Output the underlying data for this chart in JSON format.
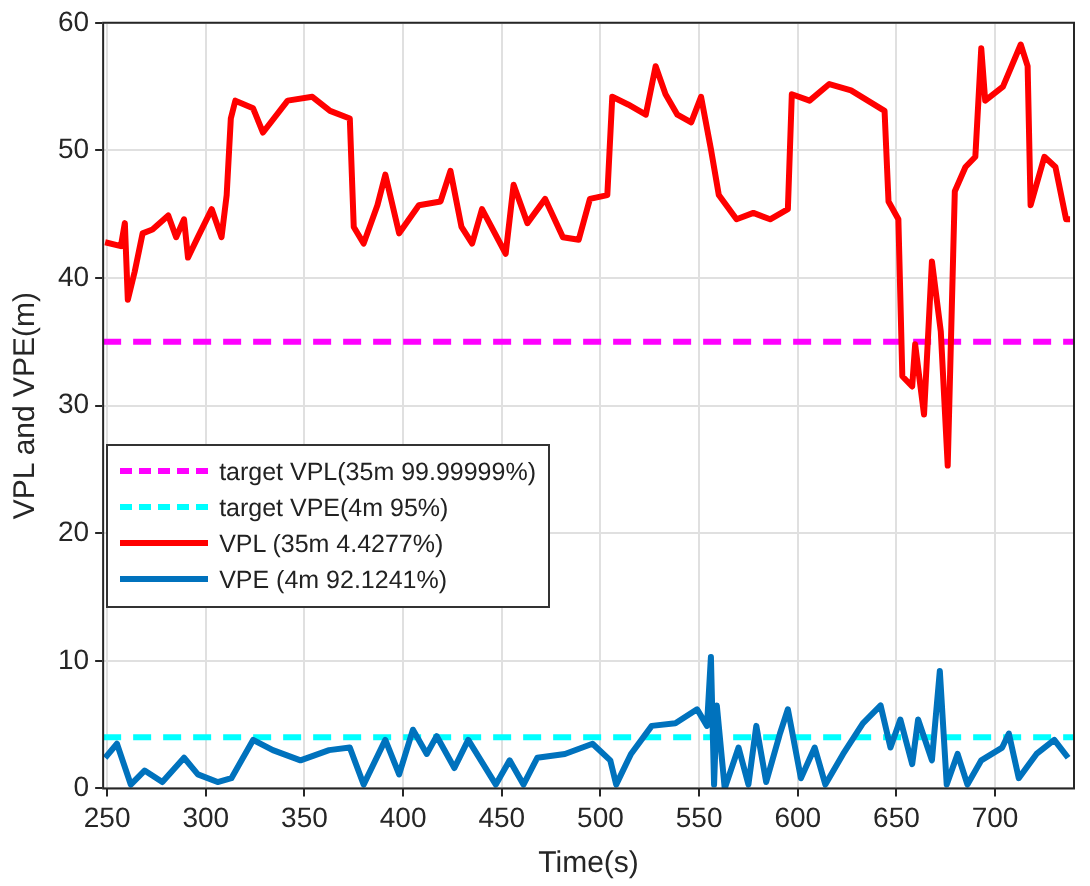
{
  "chart_data": {
    "type": "line",
    "xlabel": "Time(s)",
    "ylabel": "VPL and VPE(m)",
    "xlim": [
      248,
      740
    ],
    "xticks": [
      250,
      300,
      350,
      400,
      450,
      500,
      550,
      600,
      650,
      700
    ],
    "ylim": [
      0,
      60
    ],
    "yticks": [
      0,
      10,
      20,
      30,
      40,
      50,
      60
    ],
    "grid": true,
    "legend": "left",
    "marker": "none",
    "line_style": "solid",
    "ref_lines": [
      {
        "axis": "y",
        "value": 35,
        "label": "target VPL(35m 99.99999%)",
        "color": "#ff00ff",
        "line_style": "dashed"
      },
      {
        "axis": "y",
        "value": 4,
        "label": "target VPE(4m 95%)",
        "color": "#00ffff",
        "line_style": "dashed"
      }
    ],
    "series": [
      {
        "name": "VPL (35m 4.4277%)",
        "color": "#ff0000",
        "x": [
          249,
          257,
          259,
          260.5,
          264,
          268,
          273,
          281,
          285,
          289,
          291,
          296,
          303,
          308,
          310.6,
          312.7,
          315,
          324,
          329,
          341.5,
          354,
          363,
          373,
          375,
          380,
          387,
          391,
          398,
          408,
          419,
          424,
          429.6,
          435,
          440,
          452,
          456,
          463,
          472,
          481,
          489,
          494.7,
          503.5,
          506,
          514,
          523,
          528,
          533,
          539,
          546,
          551,
          556,
          560,
          569,
          577.5,
          586,
          595,
          597,
          606,
          616,
          627,
          644,
          646,
          651,
          653,
          658,
          659.5,
          664,
          668,
          672.5,
          676,
          679.6,
          685,
          690,
          693,
          695,
          704,
          713,
          716.5,
          718,
          725,
          730.6,
          736,
          738
        ],
        "values": [
          42.8,
          42.5,
          44.3,
          38.3,
          40.5,
          43.5,
          43.8,
          44.9,
          43.2,
          44.6,
          41.6,
          43.2,
          45.4,
          43.2,
          46.5,
          52.5,
          53.9,
          53.3,
          51.4,
          53.9,
          54.2,
          53.1,
          52.5,
          44.0,
          42.7,
          45.7,
          48.1,
          43.5,
          45.7,
          46.0,
          48.4,
          44.0,
          42.7,
          45.4,
          41.9,
          47.3,
          44.3,
          46.2,
          43.2,
          43.0,
          46.2,
          46.5,
          54.2,
          53.6,
          52.8,
          56.6,
          54.4,
          52.8,
          52.2,
          54.2,
          50.1,
          46.5,
          44.6,
          45.1,
          44.6,
          45.4,
          54.4,
          53.9,
          55.2,
          54.7,
          53.1,
          46.0,
          44.6,
          32.3,
          31.5,
          34.8,
          29.3,
          41.3,
          35.8,
          25.3,
          46.8,
          48.7,
          49.5,
          58.0,
          53.9,
          55.0,
          58.3,
          56.6,
          45.7,
          49.5,
          48.7,
          44.6,
          44.6
        ]
      },
      {
        "name": "VPE (4m 92.1241%)",
        "color": "#0072bd",
        "x": [
          249,
          255,
          262,
          269,
          278,
          289,
          296,
          306,
          313,
          324,
          334,
          348,
          362.5,
          373,
          380,
          391,
          398,
          405,
          412,
          417,
          426,
          433,
          447,
          454,
          461,
          468,
          482,
          496,
          505,
          508,
          515.5,
          526,
          538,
          549,
          554,
          556,
          557.6,
          559,
          563,
          570,
          575,
          579,
          584,
          591,
          595,
          601.6,
          608.6,
          614,
          623,
          633,
          642,
          647,
          652,
          658,
          661,
          668,
          672,
          675.5,
          681,
          686,
          693,
          703.6,
          707,
          712,
          721,
          730,
          737
        ],
        "values": [
          2.4,
          3.5,
          0.3,
          1.4,
          0.5,
          2.4,
          1.1,
          0.5,
          0.8,
          3.8,
          3.0,
          2.2,
          3.0,
          3.2,
          0.3,
          3.8,
          1.1,
          4.6,
          2.7,
          4.1,
          1.6,
          3.8,
          0.3,
          2.2,
          0.3,
          2.4,
          2.7,
          3.5,
          2.2,
          0.3,
          2.7,
          4.9,
          5.1,
          6.2,
          4.9,
          10.3,
          0.3,
          6.5,
          0,
          3.2,
          0.3,
          4.9,
          0.5,
          4.3,
          6.2,
          0.8,
          3.2,
          0.3,
          2.7,
          5.1,
          6.5,
          3.2,
          5.4,
          1.9,
          5.4,
          2.2,
          9.2,
          0.3,
          2.7,
          0.3,
          2.2,
          3.2,
          4.3,
          0.8,
          2.7,
          3.8,
          2.4
        ]
      }
    ]
  }
}
